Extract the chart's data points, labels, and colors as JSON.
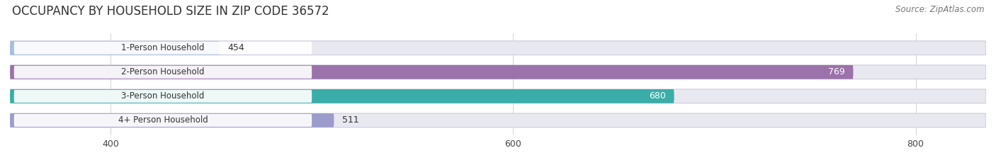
{
  "title": "OCCUPANCY BY HOUSEHOLD SIZE IN ZIP CODE 36572",
  "source": "Source: ZipAtlas.com",
  "categories": [
    "1-Person Household",
    "2-Person Household",
    "3-Person Household",
    "4+ Person Household"
  ],
  "values": [
    454,
    769,
    680,
    511
  ],
  "bar_colors": [
    "#a8bede",
    "#9b72aa",
    "#3aada8",
    "#9b9ccc"
  ],
  "label_colors": [
    "#333333",
    "#ffffff",
    "#ffffff",
    "#333333"
  ],
  "value_colors": [
    "#333333",
    "#ffffff",
    "#ffffff",
    "#333333"
  ],
  "xlim_min": 350,
  "xlim_max": 835,
  "data_min": 350,
  "xticks": [
    400,
    600,
    800
  ],
  "background_color": "#ffffff",
  "bar_bg_color": "#e8e8f0",
  "title_fontsize": 12,
  "source_fontsize": 8.5,
  "label_fontsize": 8.5,
  "value_fontsize": 9,
  "bar_height": 0.58,
  "figsize": [
    14.06,
    2.33
  ],
  "dpi": 100
}
